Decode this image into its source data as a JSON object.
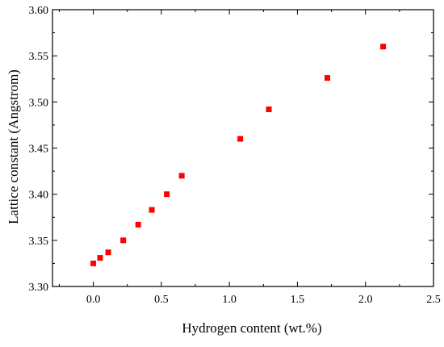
{
  "chart_data": {
    "type": "scatter",
    "title": "",
    "xlabel": "Hydrogen content (wt.%)",
    "ylabel": "Lattice constant (Angstrom)",
    "xlim": [
      -0.3,
      2.5
    ],
    "ylim": [
      3.3,
      3.6
    ],
    "x_ticks": [
      0.0,
      0.5,
      1.0,
      1.5,
      2.0,
      2.5
    ],
    "x_tick_labels": [
      "0.0",
      "0.5",
      "1.0",
      "1.5",
      "2.0",
      "2.5"
    ],
    "y_ticks": [
      3.3,
      3.35,
      3.4,
      3.45,
      3.5,
      3.55,
      3.6
    ],
    "y_tick_labels": [
      "3.30",
      "3.35",
      "3.40",
      "3.45",
      "3.50",
      "3.55",
      "3.60"
    ],
    "grid": false,
    "legend": "none",
    "marker_color": "#ff0000",
    "marker": "square",
    "series": [
      {
        "x": [
          0.0,
          0.05,
          0.11,
          0.22,
          0.33,
          0.43,
          0.54,
          0.65,
          1.08,
          1.29,
          1.72,
          2.13
        ],
        "y": [
          3.325,
          3.331,
          3.337,
          3.35,
          3.367,
          3.383,
          3.4,
          3.42,
          3.46,
          3.492,
          3.526,
          3.56
        ]
      }
    ]
  }
}
